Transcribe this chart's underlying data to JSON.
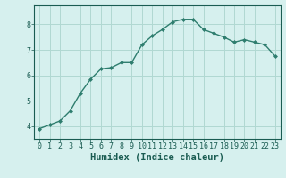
{
  "x": [
    0,
    1,
    2,
    3,
    4,
    5,
    6,
    7,
    8,
    9,
    10,
    11,
    12,
    13,
    14,
    15,
    16,
    17,
    18,
    19,
    20,
    21,
    22,
    23
  ],
  "y": [
    3.9,
    4.05,
    4.2,
    4.6,
    5.3,
    5.85,
    6.25,
    6.3,
    6.5,
    6.5,
    7.2,
    7.55,
    7.8,
    8.1,
    8.2,
    8.2,
    7.8,
    7.65,
    7.5,
    7.3,
    7.4,
    7.3,
    7.2,
    6.75
  ],
  "line_color": "#2e7d6e",
  "marker": "D",
  "marker_size": 2.0,
  "bg_color": "#d6f0ee",
  "grid_color": "#b0d8d2",
  "xlabel": "Humidex (Indice chaleur)",
  "xlabel_color": "#1a5c52",
  "xlabel_fontsize": 7.5,
  "tick_color": "#1a5c52",
  "tick_fontsize": 6.0,
  "ylim": [
    3.5,
    8.75
  ],
  "xlim": [
    -0.5,
    23.5
  ],
  "yticks": [
    4,
    5,
    6,
    7,
    8
  ],
  "xticks": [
    0,
    1,
    2,
    3,
    4,
    5,
    6,
    7,
    8,
    9,
    10,
    11,
    12,
    13,
    14,
    15,
    16,
    17,
    18,
    19,
    20,
    21,
    22,
    23
  ]
}
